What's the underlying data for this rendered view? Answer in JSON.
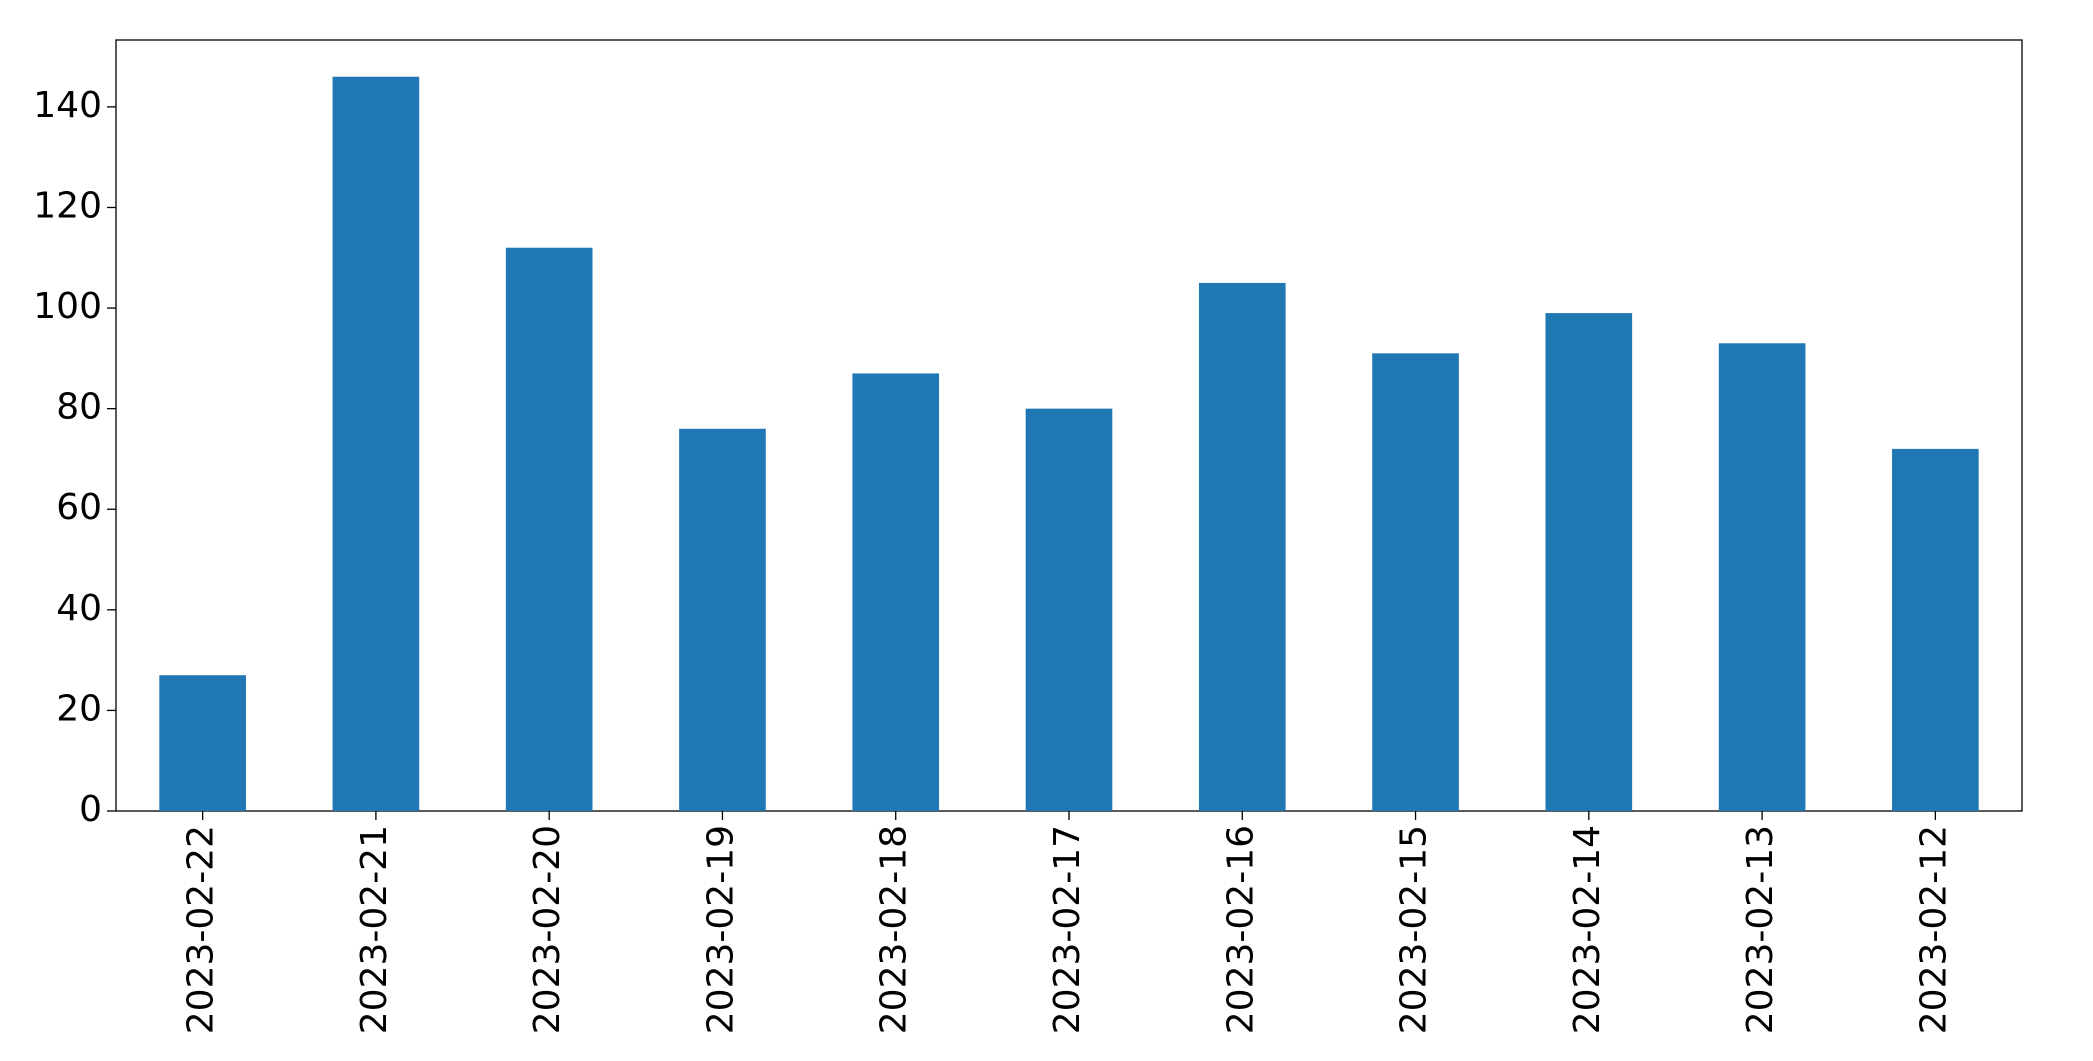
{
  "chart_data": {
    "type": "bar",
    "categories": [
      "2023-02-22",
      "2023-02-21",
      "2023-02-20",
      "2023-02-19",
      "2023-02-18",
      "2023-02-17",
      "2023-02-16",
      "2023-02-15",
      "2023-02-14",
      "2023-02-13",
      "2023-02-12"
    ],
    "values": [
      27,
      146,
      112,
      76,
      87,
      80,
      105,
      91,
      99,
      93,
      72
    ],
    "color": "#1f77b4",
    "ylim": [
      0,
      153.3
    ],
    "yticks": [
      0,
      20,
      40,
      60,
      80,
      100,
      120,
      140
    ],
    "grid": false
  }
}
